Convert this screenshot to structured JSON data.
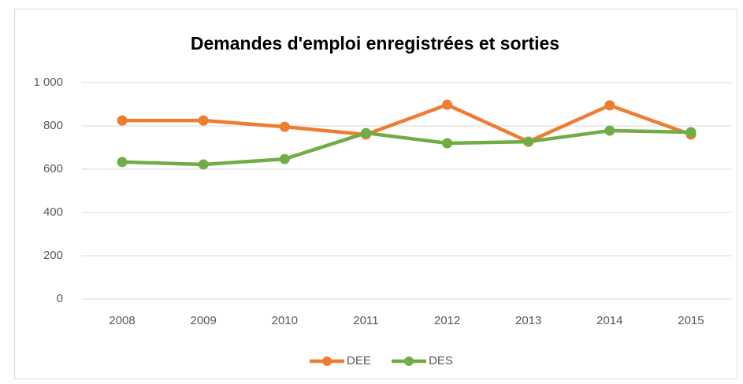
{
  "chart_data": {
    "type": "line",
    "title": "Demandes d'emploi enregistrées et sorties",
    "categories": [
      "2008",
      "2009",
      "2010",
      "2011",
      "2012",
      "2013",
      "2014",
      "2015"
    ],
    "series": [
      {
        "name": "DEE",
        "color": "#ed7d31",
        "values": [
          825,
          825,
          796,
          760,
          898,
          727,
          895,
          760
        ]
      },
      {
        "name": "DES",
        "color": "#70ad47",
        "values": [
          633,
          622,
          647,
          767,
          720,
          727,
          778,
          771
        ]
      }
    ],
    "ylim": [
      0,
      1000
    ],
    "yticks": [
      0,
      200,
      400,
      600,
      800,
      {
        "value": 1000,
        "label": "1 000"
      }
    ],
    "grid": true,
    "legend": "bottom"
  }
}
